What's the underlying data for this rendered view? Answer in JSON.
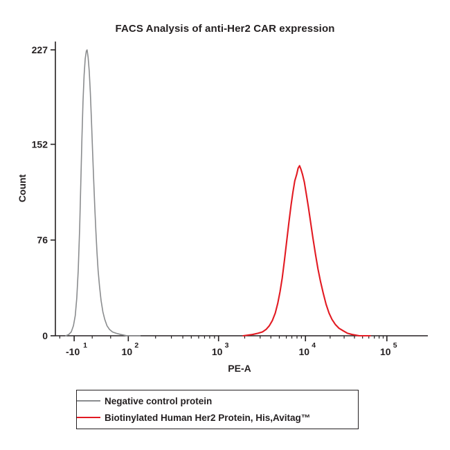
{
  "title": "FACS Analysis of anti-Her2 CAR expression",
  "chart_data": {
    "type": "line",
    "subtype": "flow-cytometry-histogram",
    "title": "FACS Analysis of anti-Her2 CAR expression",
    "xlabel": "PE-A",
    "ylabel": "Count",
    "x_scale": "biexponential-log",
    "ylim": [
      0,
      227
    ],
    "y_ticks": [
      0,
      76,
      152,
      227
    ],
    "x_ticks": [
      {
        "mantissa": "-10",
        "exponent": "1",
        "pos": 0.051
      },
      {
        "mantissa": "10",
        "exponent": "2",
        "pos": 0.198
      },
      {
        "mantissa": "10",
        "exponent": "3",
        "pos": 0.443
      },
      {
        "mantissa": "10",
        "exponent": "4",
        "pos": 0.679
      },
      {
        "mantissa": "10",
        "exponent": "5",
        "pos": 0.9
      }
    ],
    "x_minor_ticks": [
      0.012,
      0.1,
      0.15,
      0.272,
      0.315,
      0.346,
      0.369,
      0.389,
      0.405,
      0.419,
      0.432,
      0.514,
      0.556,
      0.585,
      0.608,
      0.627,
      0.642,
      0.656,
      0.668,
      0.746,
      0.784,
      0.812,
      0.834,
      0.851,
      0.866,
      0.879,
      0.89
    ],
    "grid": "off",
    "legend_position": "bottom",
    "series": [
      {
        "name": "Negative control protein",
        "color": "#8a8c8e",
        "peak_center": "~10^1",
        "peak_height": 227,
        "points": [
          [
            0.028,
            0
          ],
          [
            0.036,
            1
          ],
          [
            0.043,
            3
          ],
          [
            0.049,
            8
          ],
          [
            0.054,
            16
          ],
          [
            0.058,
            30
          ],
          [
            0.062,
            52
          ],
          [
            0.066,
            86
          ],
          [
            0.069,
            121
          ],
          [
            0.072,
            156
          ],
          [
            0.075,
            186
          ],
          [
            0.078,
            207
          ],
          [
            0.081,
            220
          ],
          [
            0.084,
            226
          ],
          [
            0.086,
            227
          ],
          [
            0.089,
            221
          ],
          [
            0.092,
            210
          ],
          [
            0.095,
            193
          ],
          [
            0.098,
            171
          ],
          [
            0.101,
            147
          ],
          [
            0.104,
            124
          ],
          [
            0.107,
            102
          ],
          [
            0.11,
            83
          ],
          [
            0.113,
            66
          ],
          [
            0.116,
            52
          ],
          [
            0.12,
            39
          ],
          [
            0.124,
            28
          ],
          [
            0.129,
            19
          ],
          [
            0.134,
            13
          ],
          [
            0.14,
            8
          ],
          [
            0.147,
            5
          ],
          [
            0.155,
            3
          ],
          [
            0.165,
            2
          ],
          [
            0.178,
            1
          ],
          [
            0.195,
            0
          ],
          [
            0.23,
            0
          ]
        ]
      },
      {
        "name": "Biotinylated Human Her2 Protein, His,Avitag™",
        "color": "#e21a22",
        "peak_center": "~10^4",
        "peak_height": 135,
        "points": [
          [
            0.51,
            0
          ],
          [
            0.535,
            1
          ],
          [
            0.55,
            2
          ],
          [
            0.562,
            3
          ],
          [
            0.572,
            5
          ],
          [
            0.581,
            8
          ],
          [
            0.589,
            12
          ],
          [
            0.597,
            18
          ],
          [
            0.604,
            26
          ],
          [
            0.61,
            35
          ],
          [
            0.616,
            46
          ],
          [
            0.622,
            60
          ],
          [
            0.628,
            75
          ],
          [
            0.634,
            90
          ],
          [
            0.64,
            104
          ],
          [
            0.645,
            114
          ],
          [
            0.65,
            123
          ],
          [
            0.655,
            128
          ],
          [
            0.659,
            133
          ],
          [
            0.663,
            135
          ],
          [
            0.667,
            132
          ],
          [
            0.671,
            128
          ],
          [
            0.676,
            122
          ],
          [
            0.681,
            113
          ],
          [
            0.687,
            102
          ],
          [
            0.693,
            90
          ],
          [
            0.699,
            78
          ],
          [
            0.706,
            65
          ],
          [
            0.713,
            53
          ],
          [
            0.72,
            43
          ],
          [
            0.727,
            34
          ],
          [
            0.735,
            25
          ],
          [
            0.743,
            18
          ],
          [
            0.751,
            13
          ],
          [
            0.76,
            9
          ],
          [
            0.77,
            6
          ],
          [
            0.781,
            4
          ],
          [
            0.793,
            2
          ],
          [
            0.806,
            1
          ],
          [
            0.825,
            0
          ],
          [
            0.855,
            0
          ]
        ]
      }
    ]
  },
  "legend": {
    "items": [
      {
        "label": "Negative control protein",
        "color": "#8a8c8e"
      },
      {
        "label": "Biotinylated Human Her2 Protein, His,Avitag™",
        "color": "#e21a22"
      }
    ]
  },
  "axis_color": "#231f20"
}
